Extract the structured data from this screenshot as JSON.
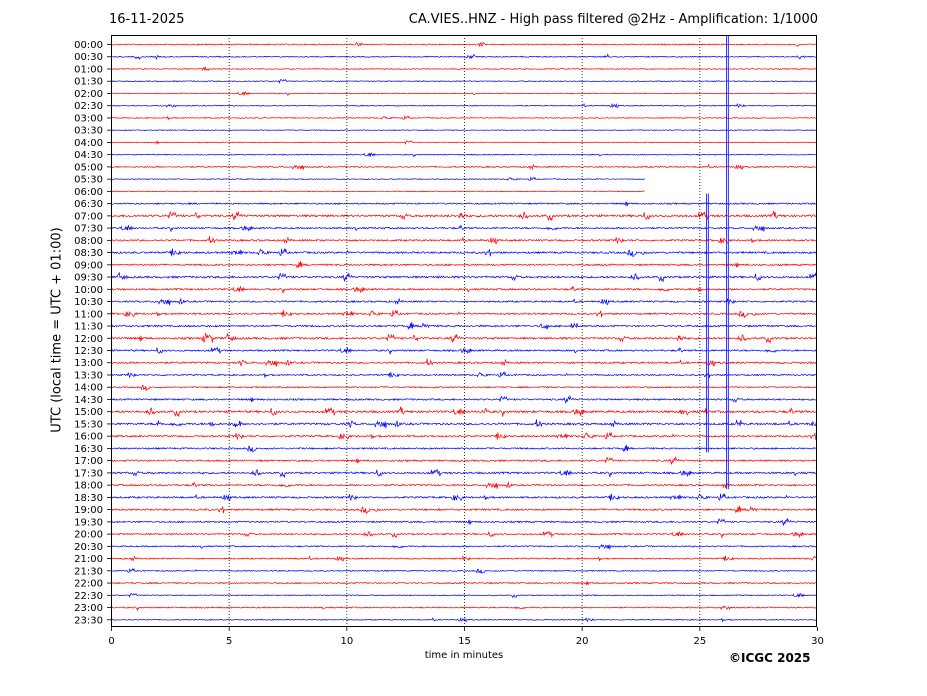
{
  "header": {
    "date": "16-11-2025",
    "title": "CA.VIES..HNZ - High pass filtered @2Hz - Amplification: 1/1000"
  },
  "footer": {
    "copyright": "©ICGC 2025"
  },
  "colors": {
    "red_trace": "#ff0000",
    "blue_trace": "#0000ff",
    "grid": "#000000"
  },
  "chart_data": {
    "type": "line",
    "chart_kind": "helicorder",
    "xlabel": "time in minutes",
    "ylabel": "UTC (local time = UTC + 01:00)",
    "xlim": [
      0,
      30
    ],
    "x_ticks": [
      0,
      5,
      10,
      15,
      20,
      25,
      30
    ],
    "vertical_gridlines_minutes": [
      5,
      10,
      15,
      20,
      25
    ],
    "grid": "vertical dotted",
    "trace_color_sequence": [
      "red",
      "blue"
    ],
    "rows": [
      "00:00",
      "00:30",
      "01:00",
      "01:30",
      "02:00",
      "02:30",
      "03:00",
      "03:30",
      "04:00",
      "04:30",
      "05:00",
      "05:30",
      "06:00",
      "06:30",
      "07:00",
      "07:30",
      "08:00",
      "08:30",
      "09:00",
      "09:30",
      "10:00",
      "10:30",
      "11:00",
      "11:30",
      "12:00",
      "12:30",
      "13:00",
      "13:30",
      "14:00",
      "14:30",
      "15:00",
      "15:30",
      "16:00",
      "16:30",
      "17:00",
      "17:30",
      "18:00",
      "18:30",
      "19:00",
      "19:30",
      "20:00",
      "20:30",
      "21:00",
      "21:30",
      "22:00",
      "22:30",
      "23:00",
      "23:30"
    ],
    "activity_level": [
      0.25,
      0.2,
      0.12,
      0.12,
      0.1,
      0.12,
      0.1,
      0.05,
      0.05,
      0.12,
      0.3,
      0.08,
      0.1,
      0.4,
      0.75,
      0.45,
      0.55,
      0.6,
      0.5,
      0.65,
      0.55,
      0.5,
      0.5,
      0.55,
      0.7,
      0.5,
      0.55,
      0.35,
      0.35,
      0.5,
      0.75,
      0.65,
      0.55,
      0.45,
      0.5,
      0.6,
      0.5,
      0.55,
      0.55,
      0.45,
      0.4,
      0.35,
      0.3,
      0.2,
      0.3,
      0.15,
      0.25,
      0.1
    ],
    "trace_end_minute": {
      "05:30": 22.7,
      "06:00": 22.7
    },
    "spikes": [
      {
        "row": "06:30",
        "minute": 25.35,
        "through_row": "16:30"
      },
      {
        "row": "00:00",
        "minute": 26.2,
        "through_row": "18:00"
      }
    ]
  }
}
